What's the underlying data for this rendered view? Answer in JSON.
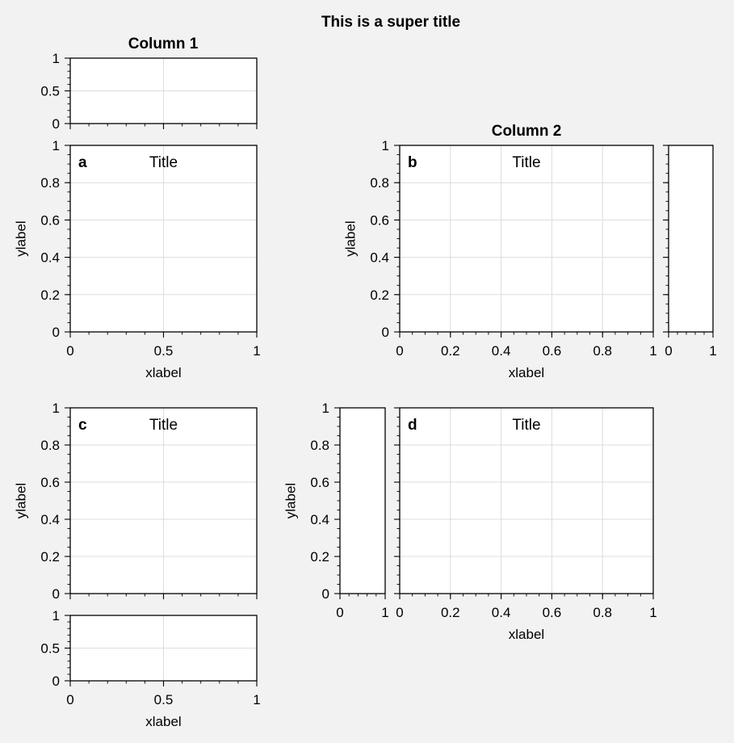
{
  "figure": {
    "suptitle": "This is a super title",
    "col_titles": [
      "Column 1",
      "Column 2"
    ],
    "background": "#f2f2f2",
    "axes_background": "#ffffff",
    "grid_color": "#dcdcdc"
  },
  "chart_data": [
    {
      "id": "top",
      "type": "line",
      "series": [],
      "xlim": [
        0,
        1
      ],
      "ylim": [
        0,
        1
      ],
      "yticklabels": [
        "0",
        "0.5",
        "1"
      ],
      "grid": true
    },
    {
      "id": "a",
      "type": "line",
      "series": [],
      "label": "a",
      "title": "Title",
      "xlabel": "xlabel",
      "ylabel": "ylabel",
      "xlim": [
        0,
        1
      ],
      "ylim": [
        0,
        1
      ],
      "xticklabels": [
        "0",
        "0.5",
        "1"
      ],
      "yticklabels": [
        "0",
        "0.2",
        "0.4",
        "0.6",
        "0.8",
        "1"
      ],
      "grid": true
    },
    {
      "id": "b",
      "type": "line",
      "series": [],
      "label": "b",
      "title": "Title",
      "xlabel": "xlabel",
      "ylabel": "ylabel",
      "xlim": [
        0,
        1
      ],
      "ylim": [
        0,
        1
      ],
      "xticklabels": [
        "0",
        "0.2",
        "0.4",
        "0.6",
        "0.8",
        "1"
      ],
      "yticklabels": [
        "0",
        "0.2",
        "0.4",
        "0.6",
        "0.8",
        "1"
      ],
      "grid": true
    },
    {
      "id": "b-right",
      "type": "line",
      "series": [],
      "xlim": [
        0,
        1
      ],
      "ylim": [
        0,
        1
      ],
      "xticklabels": [
        "0",
        "1"
      ],
      "grid": false
    },
    {
      "id": "c",
      "type": "line",
      "series": [],
      "label": "c",
      "title": "Title",
      "ylabel": "ylabel",
      "xlim": [
        0,
        1
      ],
      "ylim": [
        0,
        1
      ],
      "yticklabels": [
        "0",
        "0.2",
        "0.4",
        "0.6",
        "0.8",
        "1"
      ],
      "grid": true
    },
    {
      "id": "c-bottom",
      "type": "line",
      "series": [],
      "xlabel": "xlabel",
      "xlim": [
        0,
        1
      ],
      "ylim": [
        0,
        1
      ],
      "xticklabels": [
        "0",
        "0.5",
        "1"
      ],
      "yticklabels": [
        "0",
        "0.5",
        "1"
      ],
      "grid": true
    },
    {
      "id": "d-left",
      "type": "line",
      "series": [],
      "ylabel": "ylabel",
      "xlim": [
        0,
        1
      ],
      "ylim": [
        0,
        1
      ],
      "xticklabels": [
        "0",
        "1"
      ],
      "yticklabels": [
        "0",
        "0.2",
        "0.4",
        "0.6",
        "0.8",
        "1"
      ],
      "grid": false
    },
    {
      "id": "d",
      "type": "line",
      "series": [],
      "label": "d",
      "title": "Title",
      "xlabel": "xlabel",
      "xlim": [
        0,
        1
      ],
      "ylim": [
        0,
        1
      ],
      "xticklabels": [
        "0",
        "0.2",
        "0.4",
        "0.6",
        "0.8",
        "1"
      ],
      "grid": true
    }
  ]
}
